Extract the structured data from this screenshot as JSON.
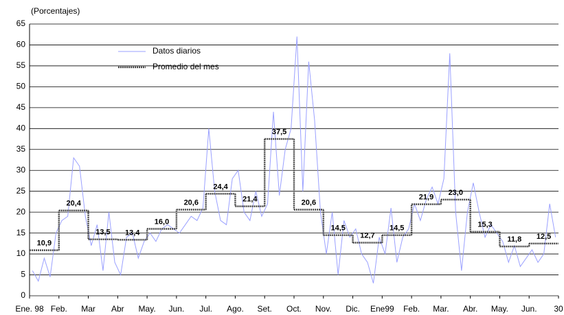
{
  "chart_data": {
    "type": "line",
    "y_label": "(Porcentajes)",
    "xlim": [
      0,
      18
    ],
    "xticks": [
      {
        "value": 0,
        "label": "Ene. 98"
      },
      {
        "value": 1,
        "label": "Feb."
      },
      {
        "value": 2,
        "label": "Mar"
      },
      {
        "value": 3,
        "label": "Abr"
      },
      {
        "value": 4,
        "label": "May."
      },
      {
        "value": 5,
        "label": "Jun."
      },
      {
        "value": 6,
        "label": "Jul."
      },
      {
        "value": 7,
        "label": "Ago."
      },
      {
        "value": 8,
        "label": "Set."
      },
      {
        "value": 9,
        "label": "Oct."
      },
      {
        "value": 10,
        "label": "Nov."
      },
      {
        "value": 11,
        "label": "Dic."
      },
      {
        "value": 12,
        "label": "Ene99"
      },
      {
        "value": 13,
        "label": "Feb."
      },
      {
        "value": 14,
        "label": "Mar."
      },
      {
        "value": 15,
        "label": "Abr."
      },
      {
        "value": 16,
        "label": "May."
      },
      {
        "value": 17,
        "label": "Jun."
      },
      {
        "value": 18,
        "label": "30"
      }
    ],
    "ylim": [
      0,
      65
    ],
    "yticks": [
      0,
      5,
      10,
      15,
      20,
      25,
      30,
      35,
      40,
      45,
      50,
      55,
      60,
      65
    ],
    "grid": true,
    "series": [
      {
        "name": "Datos diarios",
        "color": "#9aa0ff",
        "style": "line",
        "x": [
          0.1,
          0.3,
          0.5,
          0.7,
          0.9,
          1.1,
          1.3,
          1.5,
          1.7,
          1.9,
          2.1,
          2.3,
          2.5,
          2.7,
          2.9,
          3.1,
          3.3,
          3.5,
          3.7,
          3.9,
          4.1,
          4.3,
          4.5,
          4.7,
          4.9,
          5.1,
          5.3,
          5.5,
          5.7,
          5.9,
          6.1,
          6.3,
          6.5,
          6.7,
          6.9,
          7.1,
          7.3,
          7.5,
          7.7,
          7.9,
          8.1,
          8.3,
          8.5,
          8.7,
          8.9,
          9.1,
          9.3,
          9.5,
          9.7,
          9.9,
          10.1,
          10.3,
          10.5,
          10.7,
          10.9,
          11.1,
          11.3,
          11.5,
          11.7,
          11.9,
          12.1,
          12.3,
          12.5,
          12.7,
          12.9,
          13.1,
          13.3,
          13.5,
          13.7,
          13.9,
          14.1,
          14.3,
          14.5,
          14.7,
          14.9,
          15.1,
          15.3,
          15.5,
          15.7,
          15.9,
          16.1,
          16.3,
          16.5,
          16.7,
          16.9,
          17.1,
          17.3,
          17.5,
          17.7,
          17.9
        ],
        "values": [
          6,
          3.5,
          9,
          4.5,
          15,
          18,
          19,
          33,
          31,
          19,
          12,
          17,
          6,
          20,
          8,
          5,
          14,
          15,
          9,
          13,
          15,
          13,
          16,
          17,
          16,
          15,
          17,
          19,
          18,
          21,
          40,
          25,
          18,
          17,
          28,
          30,
          20,
          18,
          25,
          19,
          22,
          44,
          24,
          35,
          40,
          62,
          25,
          56,
          42,
          20,
          10,
          20,
          5,
          18,
          14,
          16,
          10,
          8,
          3,
          14,
          10,
          21,
          8,
          14,
          16,
          22,
          18,
          23,
          26,
          22,
          28,
          58,
          20,
          6,
          20,
          27,
          20,
          14,
          17,
          15,
          13,
          8,
          12,
          7,
          9,
          11,
          8,
          10,
          22,
          14
        ]
      },
      {
        "name": "Promedio del mes",
        "color": "#444444",
        "style": "step",
        "x": [
          0,
          1,
          2,
          3,
          4,
          5,
          6,
          7,
          8,
          9,
          10,
          11,
          12,
          13,
          14,
          15,
          16,
          17
        ],
        "values": [
          10.9,
          20.4,
          13.5,
          13.4,
          16.0,
          20.6,
          24.4,
          21.4,
          37.5,
          20.6,
          14.5,
          12.7,
          14.5,
          21.9,
          23.0,
          15.3,
          11.8,
          12.5
        ],
        "value_labels": [
          "10,9",
          "20,4",
          "13,5",
          "13,4",
          "16,0",
          "20,6",
          "24,4",
          "21,4",
          "37,5",
          "20,6",
          "14,5",
          "12,7",
          "14,5",
          "21,9",
          "23,0",
          "15,3",
          "11,8",
          "12,5"
        ]
      }
    ]
  }
}
